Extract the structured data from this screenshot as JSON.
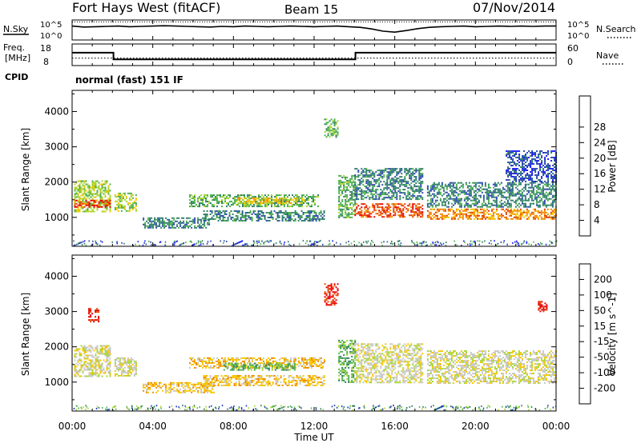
{
  "header": {
    "station": "Fort Hays West (fitACF)",
    "beam": "Beam 15",
    "date": "07/Nov/2014"
  },
  "noise_panel": {
    "left_label": "N.Sky",
    "left_ticks": [
      "10^5",
      "10^0"
    ],
    "right_ticks": [
      "10^5",
      "10^0"
    ],
    "right_label": "N.Search",
    "sky_noise_log10": [
      3.6,
      3.3,
      3.4,
      3.5,
      3.6,
      3.4,
      3.5,
      3.6,
      3.7,
      3.6,
      3.5,
      3.4,
      3.3,
      3.5,
      3.4,
      3.6,
      3.5,
      3.4,
      3.5,
      3.6,
      3.5,
      3.4,
      3.5,
      3.6,
      3.4,
      3.2,
      2.7,
      2.0,
      1.7,
      2.2,
      2.8,
      3.2,
      3.4,
      3.5,
      3.6,
      3.4,
      3.5,
      3.6,
      3.5,
      3.6,
      3.5,
      3.6,
      3.6
    ],
    "search_noise_log10": 4.9
  },
  "freq_panel": {
    "left_label": "Freq.",
    "left_unit": "[MHz]",
    "left_ticks": [
      "18",
      "8"
    ],
    "right_ticks": [
      "60",
      "0"
    ],
    "right_label": "Nave",
    "cpid_label": "CPID",
    "mode_text": "normal (fast) 151 IF",
    "freq_steps": [
      {
        "t": 0,
        "mhz": 14.4
      },
      {
        "t": 2.05,
        "mhz": 10.6
      },
      {
        "t": 14.05,
        "mhz": 14.4
      },
      {
        "t": 24,
        "mhz": 14.4
      }
    ],
    "nave": 20
  },
  "time_axis": {
    "label": "Time UT",
    "ticks": [
      "00:00",
      "04:00",
      "08:00",
      "12:00",
      "16:00",
      "20:00",
      "00:00"
    ]
  },
  "chart_data": [
    {
      "type": "heatmap",
      "quantity": "power",
      "ylabel": "Slant Range [km]",
      "yticks": [
        1000,
        2000,
        3000,
        4000
      ],
      "ylim": [
        180,
        4600
      ],
      "xlim": [
        0,
        24
      ],
      "colorbar": {
        "label": "Power [dB]",
        "ticks": [
          "4",
          "8",
          "12",
          "16",
          "20",
          "24",
          "28"
        ],
        "colors": [
          "#1f1fff",
          "#2e4bb0",
          "#2f7f6a",
          "#4fb04f",
          "#a8d630",
          "#f7c600",
          "#f08a00",
          "#e63a00",
          "#e60000"
        ]
      },
      "regions": [
        {
          "t0": 0.1,
          "t1": 1.9,
          "r0": 1150,
          "r1": 2050,
          "level": 4
        },
        {
          "t0": 0.1,
          "t1": 1.9,
          "r0": 1300,
          "r1": 1500,
          "level": 7
        },
        {
          "t0": 2.1,
          "t1": 3.2,
          "r0": 1200,
          "r1": 1700,
          "level": 4
        },
        {
          "t0": 3.5,
          "t1": 6.8,
          "r0": 700,
          "r1": 1000,
          "level": 2
        },
        {
          "t0": 5.8,
          "t1": 12.2,
          "r0": 1300,
          "r1": 1650,
          "level": 3
        },
        {
          "t0": 8.2,
          "t1": 11.5,
          "r0": 1380,
          "r1": 1560,
          "level": 5
        },
        {
          "t0": 6.5,
          "t1": 12.5,
          "r0": 900,
          "r1": 1200,
          "level": 2
        },
        {
          "t0": 12.5,
          "t1": 13.2,
          "r0": 3300,
          "r1": 3800,
          "level": 3
        },
        {
          "t0": 13.2,
          "t1": 14.0,
          "r0": 1000,
          "r1": 2200,
          "level": 3
        },
        {
          "t0": 14.0,
          "t1": 17.4,
          "r0": 1500,
          "r1": 2400,
          "level": 2
        },
        {
          "t0": 14.0,
          "t1": 17.4,
          "r0": 1000,
          "r1": 1400,
          "level": 7
        },
        {
          "t0": 17.6,
          "t1": 24,
          "r0": 1300,
          "r1": 2000,
          "level": 2
        },
        {
          "t0": 17.6,
          "t1": 24,
          "r0": 950,
          "r1": 1250,
          "level": 6
        },
        {
          "t0": 21.5,
          "t1": 24,
          "r0": 2000,
          "r1": 2900,
          "level": 1
        }
      ]
    },
    {
      "type": "heatmap",
      "quantity": "velocity",
      "ylabel": "Slant Range [km]",
      "yticks": [
        1000,
        2000,
        3000,
        4000
      ],
      "ylim": [
        180,
        4600
      ],
      "xlim": [
        0,
        24
      ],
      "colorbar": {
        "label": "Velocity [m s^-1]",
        "ticks": [
          "200",
          "100",
          "50",
          "15",
          "-15",
          "-50",
          "-100",
          "-200"
        ],
        "colors": [
          "#1f3fbf",
          "#2e7d5e",
          "#4fb04f",
          "#a8d630",
          "#c8c8c8",
          "#f7c600",
          "#f08a00",
          "#e64d00",
          "#e60000"
        ]
      },
      "regions": [
        {
          "t0": 0.1,
          "t1": 1.9,
          "r0": 1150,
          "r1": 2050,
          "level": 4
        },
        {
          "t0": 2.1,
          "t1": 3.2,
          "r0": 1200,
          "r1": 1700,
          "level": 4
        },
        {
          "t0": 3.5,
          "t1": 7.0,
          "r0": 700,
          "r1": 1000,
          "level": 5
        },
        {
          "t0": 5.8,
          "t1": 12.5,
          "r0": 1400,
          "r1": 1700,
          "level": 5
        },
        {
          "t0": 7.5,
          "t1": 11.0,
          "r0": 1350,
          "r1": 1550,
          "level": 2
        },
        {
          "t0": 6.5,
          "t1": 12.5,
          "r0": 900,
          "r1": 1200,
          "level": 5
        },
        {
          "t0": 12.5,
          "t1": 13.2,
          "r0": 3200,
          "r1": 3800,
          "level": 8
        },
        {
          "t0": 13.2,
          "t1": 14.0,
          "r0": 1000,
          "r1": 2200,
          "level": 2
        },
        {
          "t0": 14.0,
          "t1": 17.4,
          "r0": 1000,
          "r1": 2100,
          "level": 4
        },
        {
          "t0": 17.6,
          "t1": 24,
          "r0": 950,
          "r1": 1900,
          "level": 4
        },
        {
          "t0": 0.8,
          "t1": 1.3,
          "r0": 2700,
          "r1": 3100,
          "level": 8
        },
        {
          "t0": 23.1,
          "t1": 23.5,
          "r0": 3000,
          "r1": 3300,
          "level": 8
        }
      ]
    }
  ]
}
